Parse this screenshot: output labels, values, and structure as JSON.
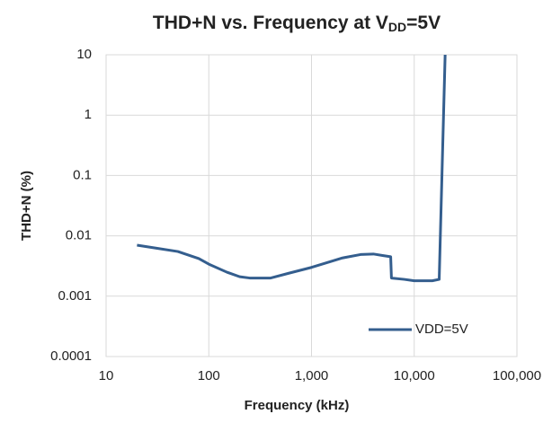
{
  "chart_data": {
    "type": "line",
    "title": [
      "THD+N vs. Frequency at V",
      "DD",
      "=5V"
    ],
    "x_label": "Frequency (kHz)",
    "y_label": "THD+N (%)",
    "log_x": true,
    "log_y": true,
    "grid": true,
    "legend": "lower right",
    "xlim": [
      10,
      100000
    ],
    "ylim": [
      0.0001,
      10
    ],
    "xticks": [
      10,
      100,
      {
        "value": 1000,
        "label": "1,000"
      },
      {
        "value": 10000,
        "label": "10,000"
      },
      {
        "value": 100000,
        "label": "100,000"
      }
    ],
    "yticks": [
      0.0001,
      0.001,
      0.01,
      0.1,
      1,
      10
    ],
    "x": [
      20,
      30,
      50,
      80,
      100,
      150,
      200,
      250,
      400,
      600,
      1000,
      1500,
      2000,
      3000,
      4000,
      5000,
      5900,
      6000,
      8000,
      10000,
      15000,
      17500,
      20000
    ],
    "series": [
      {
        "name": "VDD=5V",
        "color": "#345e8e",
        "values": [
          0.007,
          0.0063,
          0.0055,
          0.0042,
          0.0034,
          0.0025,
          0.0021,
          0.002,
          0.002,
          0.0024,
          0.003,
          0.0037,
          0.0043,
          0.0049,
          0.005,
          0.0047,
          0.0045,
          0.002,
          0.0019,
          0.0018,
          0.0018,
          0.0019,
          10
        ]
      }
    ]
  }
}
